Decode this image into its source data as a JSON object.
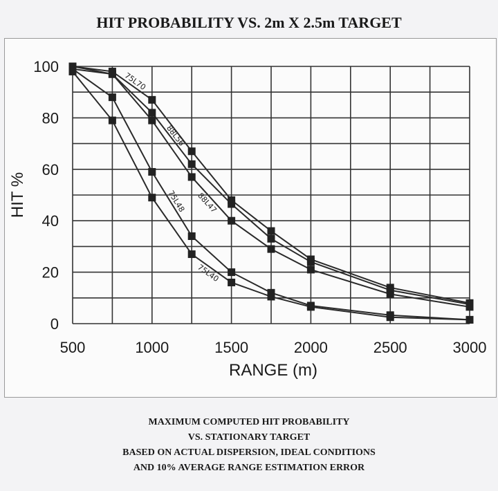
{
  "chart_data": {
    "type": "line",
    "title": "HIT PROBABILITY VS. 2m X 2.5m TARGET",
    "xlabel": "RANGE (m)",
    "ylabel": "HIT %",
    "xlim": [
      500,
      3000
    ],
    "ylim": [
      0,
      100
    ],
    "x_ticks": [
      500,
      1000,
      1500,
      2000,
      2500,
      3000
    ],
    "y_ticks": [
      0,
      20,
      40,
      60,
      80,
      100
    ],
    "grid": true,
    "marker": "square",
    "x": [
      500,
      750,
      1000,
      1250,
      1500,
      1750,
      2000,
      2500,
      3000
    ],
    "series": [
      {
        "name": "75L70",
        "values": [
          100,
          98,
          87,
          67,
          48,
          36,
          25,
          14,
          8
        ]
      },
      {
        "name": "88L56",
        "values": [
          100,
          97,
          82,
          62,
          46.5,
          33,
          24,
          13,
          7.5
        ]
      },
      {
        "name": "88L47",
        "values": [
          99,
          97,
          79,
          57,
          40,
          29,
          21,
          11.5,
          6.5
        ]
      },
      {
        "name": "75L48",
        "values": [
          99,
          88,
          59,
          34,
          20,
          12,
          7,
          3.3,
          1.5
        ]
      },
      {
        "name": "75L40",
        "values": [
          98,
          79,
          49,
          27,
          16,
          10.5,
          6.5,
          2.5,
          1.5
        ]
      }
    ]
  },
  "caption": [
    "MAXIMUM COMPUTED HIT PROBABILITY",
    "VS. STATIONARY TARGET",
    "BASED ON ACTUAL DISPERSION, IDEAL CONDITIONS",
    "AND 10% AVERAGE RANGE ESTIMATION ERROR"
  ],
  "colors": {
    "line": "#2a2a2a",
    "grid": "#333333",
    "background": "#f3f3f5"
  }
}
